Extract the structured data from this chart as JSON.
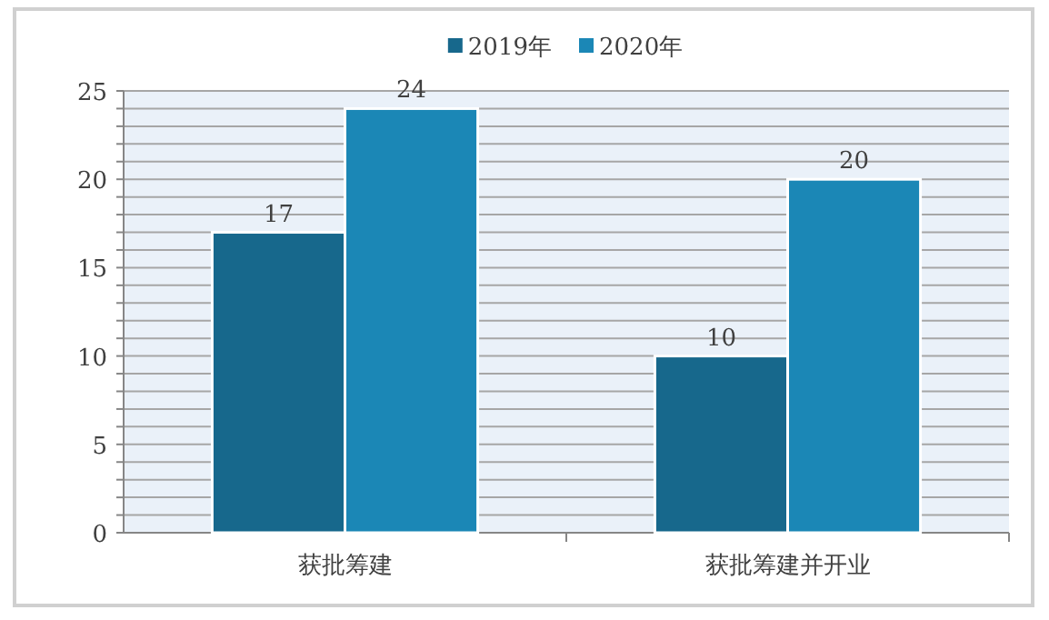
{
  "chart_data": {
    "type": "bar",
    "categories": [
      "获批筹建",
      "获批筹建并开业"
    ],
    "series": [
      {
        "name": "2019年",
        "color": "#17688c",
        "values": [
          17,
          10
        ]
      },
      {
        "name": "2020年",
        "color": "#1b87b6",
        "values": [
          24,
          20
        ]
      }
    ],
    "ylim": [
      0,
      25
    ],
    "yticks": [
      0,
      {
        "value": 1,
        "label": null
      },
      {
        "value": 2,
        "label": null
      },
      {
        "value": 3,
        "label": null
      },
      {
        "value": 4,
        "label": null
      },
      5,
      {
        "value": 6,
        "label": null
      },
      {
        "value": 7,
        "label": null
      },
      {
        "value": 8,
        "label": null
      },
      {
        "value": 9,
        "label": null
      },
      10,
      {
        "value": 11,
        "label": null
      },
      {
        "value": 12,
        "label": null
      },
      {
        "value": 13,
        "label": null
      },
      {
        "value": 14,
        "label": null
      },
      15,
      {
        "value": 16,
        "label": null
      },
      {
        "value": 17,
        "label": null
      },
      {
        "value": 18,
        "label": null
      },
      {
        "value": 19,
        "label": null
      },
      20,
      {
        "value": 21,
        "label": null
      },
      {
        "value": 22,
        "label": null
      },
      {
        "value": 23,
        "label": null
      },
      {
        "value": 24,
        "label": null
      },
      25
    ],
    "grid": "y",
    "legend": "top",
    "data_labels": true
  }
}
